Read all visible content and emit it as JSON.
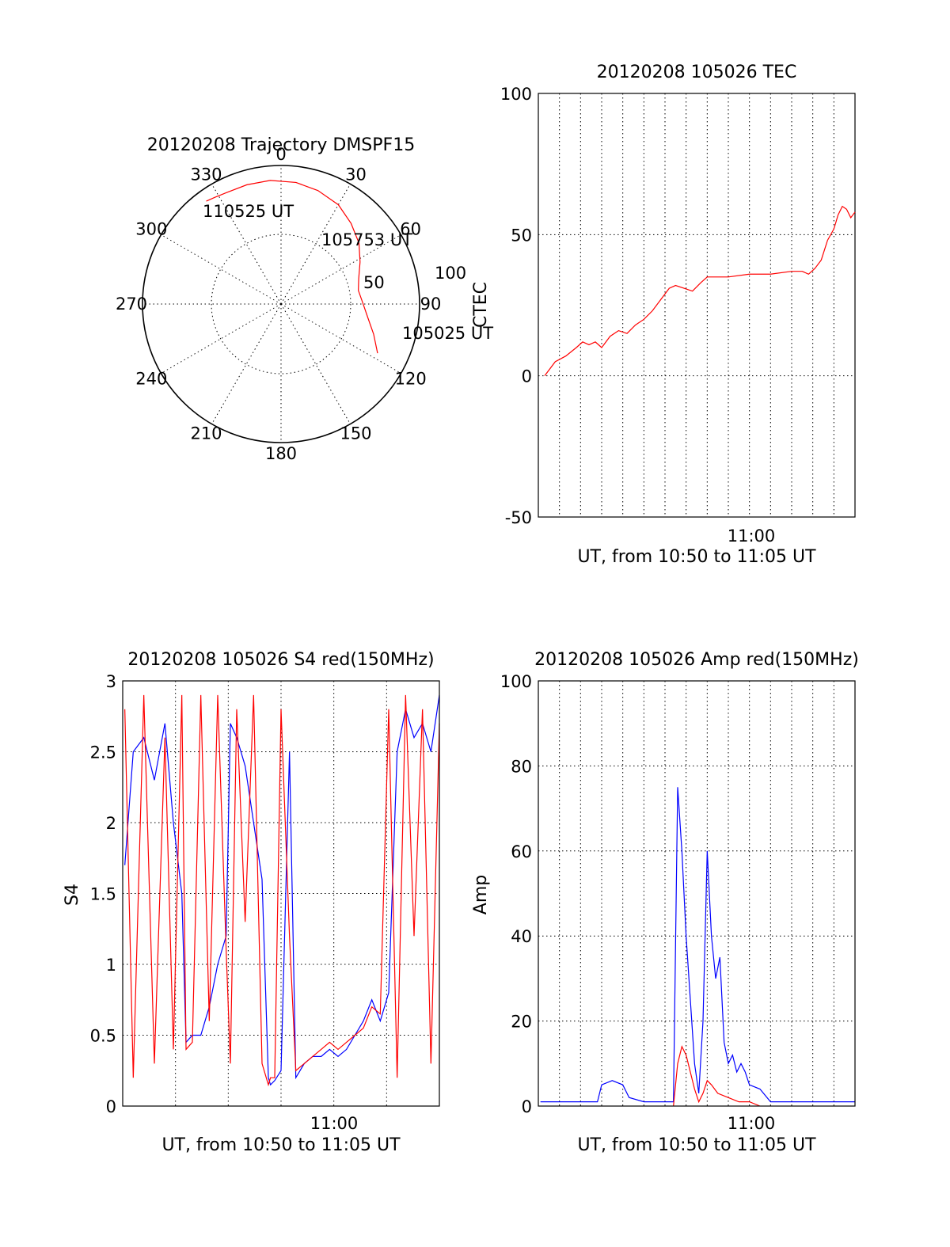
{
  "colors": {
    "red_series": "#ff0000",
    "blue_series": "#0000ff",
    "axes": "#000000",
    "background": "#ffffff"
  },
  "chart_data": [
    {
      "type": "polar",
      "title": "20120208 Trajectory DMSPF15",
      "azimuth_labels": [
        "0",
        "30",
        "60",
        "90",
        "120",
        "150",
        "180",
        "210",
        "240",
        "270",
        "300",
        "330"
      ],
      "radius_labels": [
        "50",
        "100"
      ],
      "grid": true,
      "series": [
        {
          "color": "#ff0000",
          "points": [
            {
              "azimuth": 117,
              "elevation": 21
            },
            {
              "azimuth": 108,
              "elevation": 28
            },
            {
              "azimuth": 99,
              "elevation": 34
            },
            {
              "azimuth": 89,
              "elevation": 38
            },
            {
              "azimuth": 80,
              "elevation": 40
            },
            {
              "azimuth": 72,
              "elevation": 38
            },
            {
              "azimuth": 62,
              "elevation": 33
            },
            {
              "azimuth": 52,
              "elevation": 27
            },
            {
              "azimuth": 41,
              "elevation": 22
            },
            {
              "azimuth": 30,
              "elevation": 17
            },
            {
              "azimuth": 18,
              "elevation": 14
            },
            {
              "azimuth": 7,
              "elevation": 12
            },
            {
              "azimuth": -5,
              "elevation": 11
            },
            {
              "azimuth": -16,
              "elevation": 11
            },
            {
              "azimuth": -26,
              "elevation": 11
            },
            {
              "azimuth": -32,
              "elevation": 10
            },
            {
              "azimuth": -36,
              "elevation": 9
            }
          ]
        }
      ],
      "annotations": [
        "110525 UT",
        "105753 UT",
        "105025 UT"
      ]
    },
    {
      "type": "line",
      "title": "20120208 105026 TEC",
      "xlabel": "UT, from 10:50 to 11:05 UT",
      "ylabel": "CTEC",
      "xlim": [
        0,
        15
      ],
      "ylim": [
        -50,
        100
      ],
      "yticks": [
        "100",
        "50",
        "0",
        "-50"
      ],
      "xtick_labels": [
        "11:00"
      ],
      "grid": true,
      "series": [
        {
          "color": "#ff0000",
          "x": [
            0.3,
            0.8,
            1.3,
            1.8,
            2.1,
            2.4,
            2.7,
            3.0,
            3.4,
            3.8,
            4.2,
            4.6,
            5.0,
            5.4,
            5.8,
            6.2,
            6.5,
            6.9,
            7.3,
            7.7,
            8.0,
            8.3,
            9.0,
            10.0,
            11.0,
            12.0,
            12.5,
            12.8,
            13.1,
            13.4,
            13.7,
            14.0,
            14.2,
            14.4,
            14.6,
            14.8,
            15.0
          ],
          "y": [
            0,
            5,
            7,
            10,
            12,
            11,
            12,
            10,
            14,
            16,
            15,
            18,
            20,
            23,
            27,
            31,
            32,
            31,
            30,
            33,
            35,
            35,
            35,
            36,
            36,
            37,
            37,
            36,
            38,
            41,
            48,
            52,
            57,
            60,
            59,
            56,
            58
          ]
        }
      ]
    },
    {
      "type": "line",
      "title": "20120208 105026 S4 red(150MHz)",
      "xlabel": "UT, from 10:50 to 11:05 UT",
      "ylabel": "S4",
      "xlim": [
        0,
        15
      ],
      "ylim": [
        0,
        3
      ],
      "yticks": [
        "3",
        "2.5",
        "2",
        "1.5",
        "1",
        "0.5",
        "0"
      ],
      "xtick_labels": [
        "11:00"
      ],
      "grid": true,
      "series": [
        {
          "color": "#0000ff",
          "x": [
            0.1,
            0.5,
            1.0,
            1.5,
            2.0,
            2.4,
            2.8,
            3.0,
            3.3,
            3.7,
            4.1,
            4.5,
            4.9,
            5.1,
            5.4,
            5.8,
            6.2,
            6.6,
            6.9,
            7.0,
            7.2,
            7.5,
            7.9,
            8.2,
            8.6,
            9.0,
            9.4,
            9.8,
            10.2,
            10.6,
            11.0,
            11.4,
            11.8,
            12.2,
            12.6,
            13.0,
            13.4,
            13.8,
            14.2,
            14.6,
            15.0
          ],
          "y": [
            1.7,
            2.5,
            2.6,
            2.3,
            2.7,
            2.0,
            1.5,
            0.45,
            0.5,
            0.5,
            0.7,
            1.0,
            1.2,
            2.7,
            2.6,
            2.4,
            2.0,
            1.6,
            0.2,
            0.15,
            0.18,
            0.25,
            2.5,
            0.2,
            0.3,
            0.35,
            0.35,
            0.4,
            0.35,
            0.4,
            0.5,
            0.6,
            0.75,
            0.6,
            0.8,
            2.5,
            2.8,
            2.6,
            2.7,
            2.5,
            2.9
          ]
        },
        {
          "color": "#ff0000",
          "x": [
            0.1,
            0.5,
            1.0,
            1.5,
            2.0,
            2.4,
            2.8,
            3.0,
            3.3,
            3.7,
            4.1,
            4.5,
            4.9,
            5.1,
            5.4,
            5.8,
            6.2,
            6.6,
            6.9,
            7.0,
            7.2,
            7.5,
            7.9,
            8.2,
            8.6,
            9.0,
            9.4,
            9.8,
            10.2,
            10.6,
            11.0,
            11.4,
            11.8,
            12.2,
            12.6,
            13.0,
            13.4,
            13.8,
            14.2,
            14.6,
            15.0
          ],
          "y": [
            2.8,
            0.2,
            2.9,
            0.3,
            2.6,
            0.4,
            2.9,
            0.4,
            0.45,
            2.9,
            0.6,
            2.9,
            1.1,
            0.3,
            2.8,
            1.3,
            2.9,
            0.3,
            0.15,
            0.2,
            0.2,
            2.8,
            1.2,
            0.25,
            0.3,
            0.35,
            0.4,
            0.45,
            0.4,
            0.45,
            0.5,
            0.55,
            0.7,
            0.65,
            2.8,
            0.2,
            2.9,
            1.2,
            2.8,
            0.3,
            2.7
          ]
        }
      ]
    },
    {
      "type": "line",
      "title": "20120208 105026 Amp red(150MHz)",
      "xlabel": "UT, from 10:50 to 11:05 UT",
      "ylabel": "Amp",
      "xlim": [
        0,
        15
      ],
      "ylim": [
        0,
        100
      ],
      "yticks": [
        "100",
        "80",
        "60",
        "40",
        "20",
        "0"
      ],
      "xtick_labels": [
        "11:00"
      ],
      "grid": true,
      "series": [
        {
          "color": "#0000ff",
          "x": [
            0.1,
            1.0,
            2.0,
            2.8,
            3.0,
            3.5,
            4.0,
            4.3,
            5.0,
            6.0,
            6.4,
            6.6,
            6.8,
            7.0,
            7.2,
            7.4,
            7.6,
            7.8,
            8.0,
            8.2,
            8.4,
            8.6,
            8.8,
            9.0,
            9.2,
            9.4,
            9.6,
            9.8,
            10.0,
            10.5,
            11.0,
            11.5,
            12.0,
            13.0,
            14.0,
            15.0
          ],
          "y": [
            1,
            1,
            1,
            1,
            5,
            6,
            5,
            2,
            1,
            1,
            1,
            75,
            60,
            40,
            25,
            10,
            3,
            20,
            60,
            40,
            30,
            35,
            15,
            10,
            12,
            8,
            10,
            8,
            5,
            4,
            1,
            1,
            1,
            1,
            1,
            1
          ]
        },
        {
          "color": "#ff0000",
          "x": [
            6.4,
            6.6,
            6.8,
            7.0,
            7.2,
            7.4,
            7.6,
            7.8,
            8.0,
            8.2,
            8.5,
            9.0,
            9.5,
            10.0,
            10.5
          ],
          "y": [
            0,
            10,
            14,
            12,
            8,
            4,
            1,
            3,
            6,
            5,
            3,
            2,
            1,
            1,
            0
          ]
        }
      ]
    }
  ]
}
